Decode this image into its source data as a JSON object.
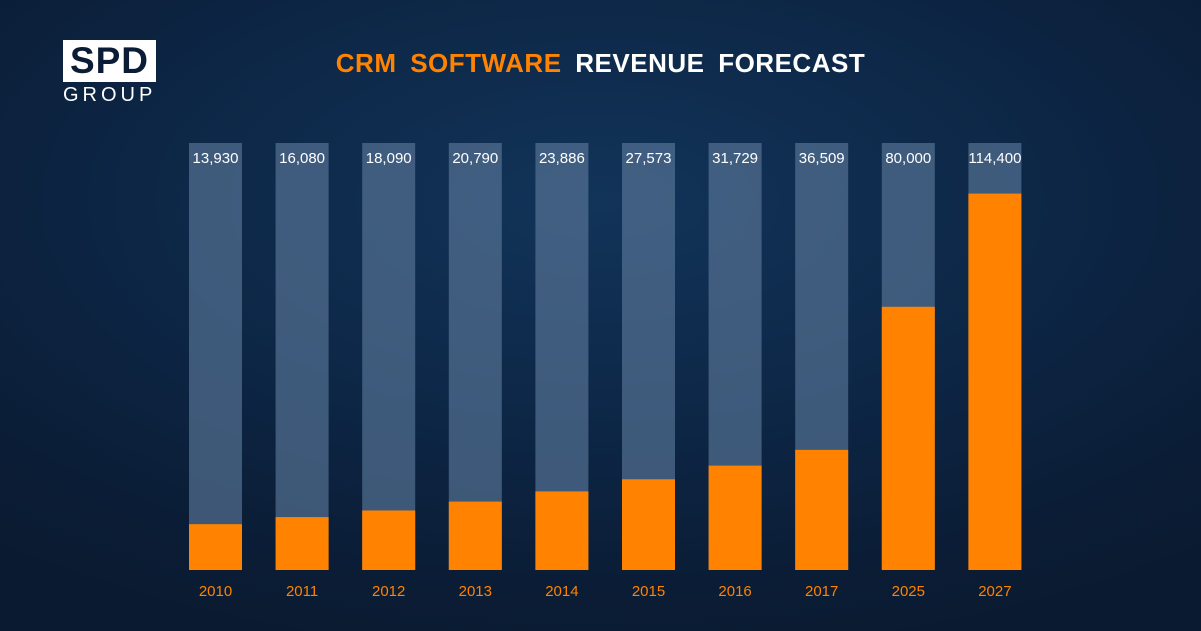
{
  "brand": {
    "logo_main": "SPD",
    "logo_sub": "GROUP"
  },
  "title": {
    "accent": "CRM SOFTWARE",
    "rest": "REVENUE FORECAST"
  },
  "colors": {
    "bar_fill": "#ff8300",
    "bar_track": "#5d7b9c",
    "value_label": "#ffffff",
    "year_label": "#ff8300"
  },
  "chart_data": {
    "type": "bar",
    "title": "CRM SOFTWARE REVENUE FORECAST",
    "categories": [
      "2010",
      "2011",
      "2012",
      "2013",
      "2014",
      "2015",
      "2016",
      "2017",
      "2025",
      "2027"
    ],
    "values": [
      13930,
      16080,
      18090,
      20790,
      23886,
      27573,
      31729,
      36509,
      80000,
      114400
    ],
    "value_labels": [
      "13,930",
      "16,080",
      "18,090",
      "20,790",
      "23,886",
      "27,573",
      "31,729",
      "36,509",
      "80,000",
      "114,400"
    ],
    "xlabel": "",
    "ylabel": "",
    "grid": false,
    "legend": "none"
  }
}
